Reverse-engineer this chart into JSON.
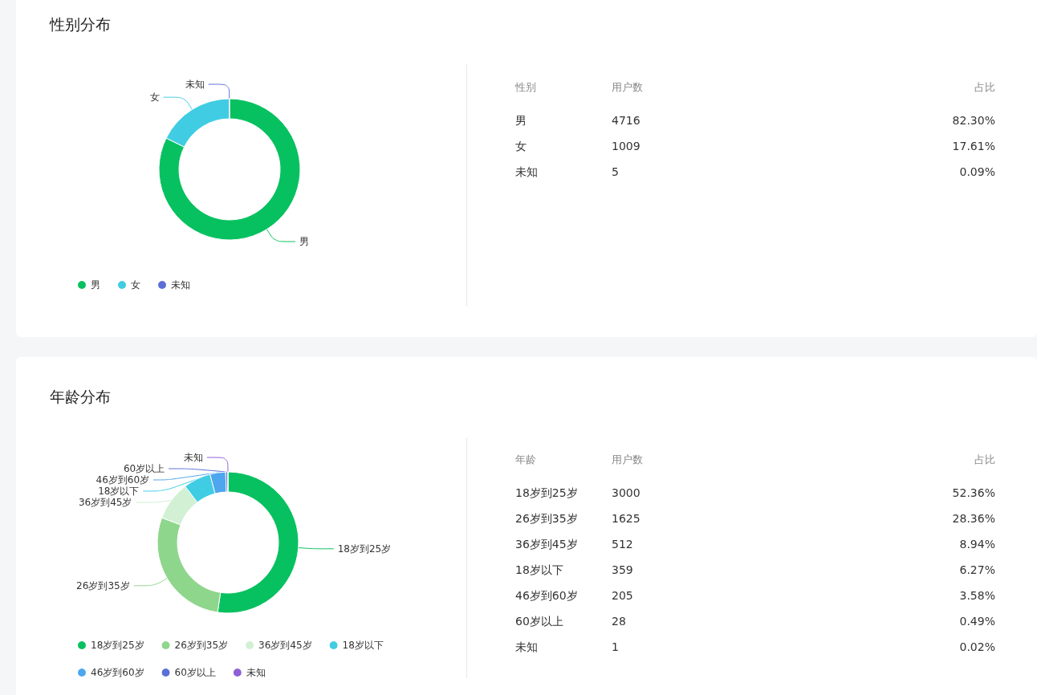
{
  "chart_data": [
    {
      "type": "donut",
      "title": "性别分布",
      "categories": [
        "男",
        "女",
        "未知"
      ],
      "values": [
        82.3,
        17.61,
        0.09
      ],
      "colors": [
        "#07c160",
        "#40cde3",
        "#5b6fd6"
      ],
      "legend": "bottom"
    },
    {
      "type": "other",
      "ylabel": "性别",
      "categories": [
        "男",
        "女",
        "未知"
      ],
      "series": [
        {
          "name": "用户数",
          "values": [
            4716,
            1009,
            5
          ]
        },
        {
          "name": "占比",
          "values": [
            82.3,
            17.61,
            0.09
          ],
          "value_labels": [
            "82.30%",
            "17.61%",
            "0.09%"
          ]
        }
      ],
      "data_labels": true
    },
    {
      "type": "donut",
      "title": "年龄分布",
      "categories": [
        "18岁到25岁",
        "26岁到35岁",
        "36岁到45岁",
        "18岁以下",
        "46岁到60岁",
        "60岁以上",
        "未知"
      ],
      "values": [
        52.36,
        28.36,
        8.94,
        6.27,
        3.58,
        0.49,
        0.02
      ],
      "colors": [
        "#07c160",
        "#8fd68d",
        "#d2f0d3",
        "#40cde3",
        "#4ea6ef",
        "#5b6fd6",
        "#8e5fd6"
      ],
      "legend": "bottom"
    },
    {
      "type": "other",
      "ylabel": "年龄",
      "categories": [
        "18岁到25岁",
        "26岁到35岁",
        "36岁到45岁",
        "18岁以下",
        "46岁到60岁",
        "60岁以上",
        "未知"
      ],
      "series": [
        {
          "name": "用户数",
          "values": [
            3000,
            1625,
            512,
            359,
            205,
            28,
            1
          ]
        },
        {
          "name": "占比",
          "values": [
            52.36,
            28.36,
            8.94,
            6.27,
            3.58,
            0.49,
            0.02
          ],
          "value_labels": [
            "52.36%",
            "28.36%",
            "8.94%",
            "6.27%",
            "3.58%",
            "0.49%",
            "0.02%"
          ]
        }
      ],
      "data_labels": true
    }
  ]
}
